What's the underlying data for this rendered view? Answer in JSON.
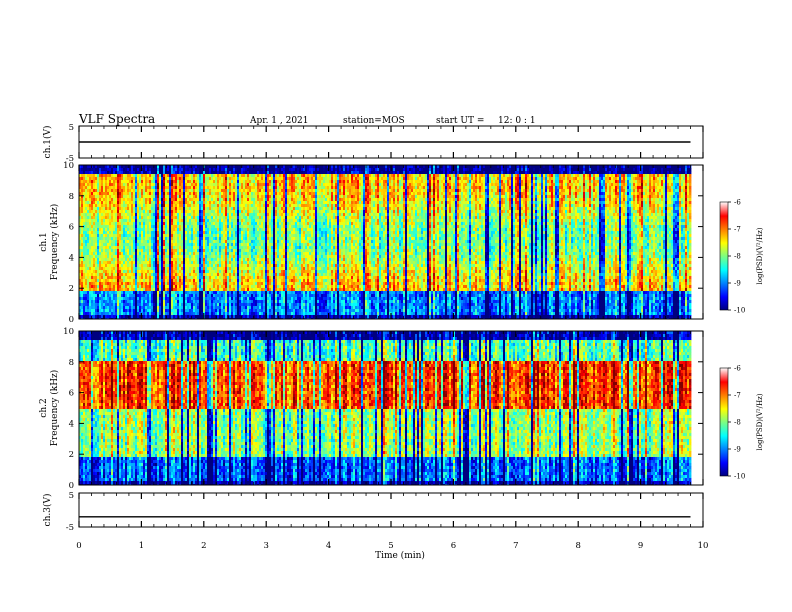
{
  "header": {
    "title": "VLF Spectra",
    "date": "Apr. 1 , 2021",
    "station": "station=MOS",
    "start_label": "start UT =",
    "start_time": "12: 0 : 1"
  },
  "chart_data": [
    {
      "type": "line",
      "panel": "ch1-waveform",
      "ylabel": "ch.1(V)",
      "ylim": [
        -5,
        5
      ],
      "y_ticks": [
        "5",
        "-5"
      ],
      "xlim": [
        0,
        10
      ],
      "series": [
        {
          "x": [
            0,
            9.8
          ],
          "values": [
            0,
            0
          ]
        }
      ]
    },
    {
      "type": "heatmap",
      "panel": "ch1-spectrogram",
      "ylabel_top": "ch.1",
      "ylabel": "Frequency (kHz)",
      "ylim": [
        0,
        10
      ],
      "y_ticks": [
        "0",
        "2",
        "4",
        "6",
        "8",
        "10"
      ],
      "xlim": [
        0,
        10
      ],
      "data_extent_min": 9.8,
      "colorbar": {
        "label": "log(PSD)(V²/Hz)",
        "range": [
          -10,
          -6
        ],
        "ticks": [
          "-6",
          "-7",
          "-8",
          "-9",
          "-10"
        ]
      }
    },
    {
      "type": "heatmap",
      "panel": "ch2-spectrogram",
      "ylabel_top": "ch.2",
      "ylabel": "Frequency (kHz)",
      "ylim": [
        0,
        10
      ],
      "y_ticks": [
        "0",
        "2",
        "4",
        "6",
        "8",
        "10"
      ],
      "xlim": [
        0,
        10
      ],
      "data_extent_min": 9.8,
      "colorbar": {
        "label": "log(PSD)(V²/Hz)",
        "range": [
          -10,
          -6
        ],
        "ticks": [
          "-6",
          "-7",
          "-8",
          "-9",
          "-10"
        ]
      }
    },
    {
      "type": "line",
      "panel": "ch3-waveform",
      "ylabel": "ch.3(V)",
      "ylim": [
        -5,
        5
      ],
      "y_ticks": [
        "5",
        "-5"
      ],
      "xlim": [
        0,
        10
      ],
      "series": [
        {
          "x": [
            0,
            9.8
          ],
          "values": [
            -2,
            -2
          ]
        }
      ]
    }
  ],
  "x_axis": {
    "label": "Time (min)",
    "ticks": [
      "0",
      "1",
      "2",
      "3",
      "4",
      "5",
      "6",
      "7",
      "8",
      "9",
      "10"
    ]
  },
  "colors": {
    "jet": [
      "#00007f",
      "#0000ff",
      "#007fff",
      "#00ffff",
      "#7fff7f",
      "#ffff00",
      "#ff7f00",
      "#ff0000",
      "#7f0000"
    ]
  }
}
